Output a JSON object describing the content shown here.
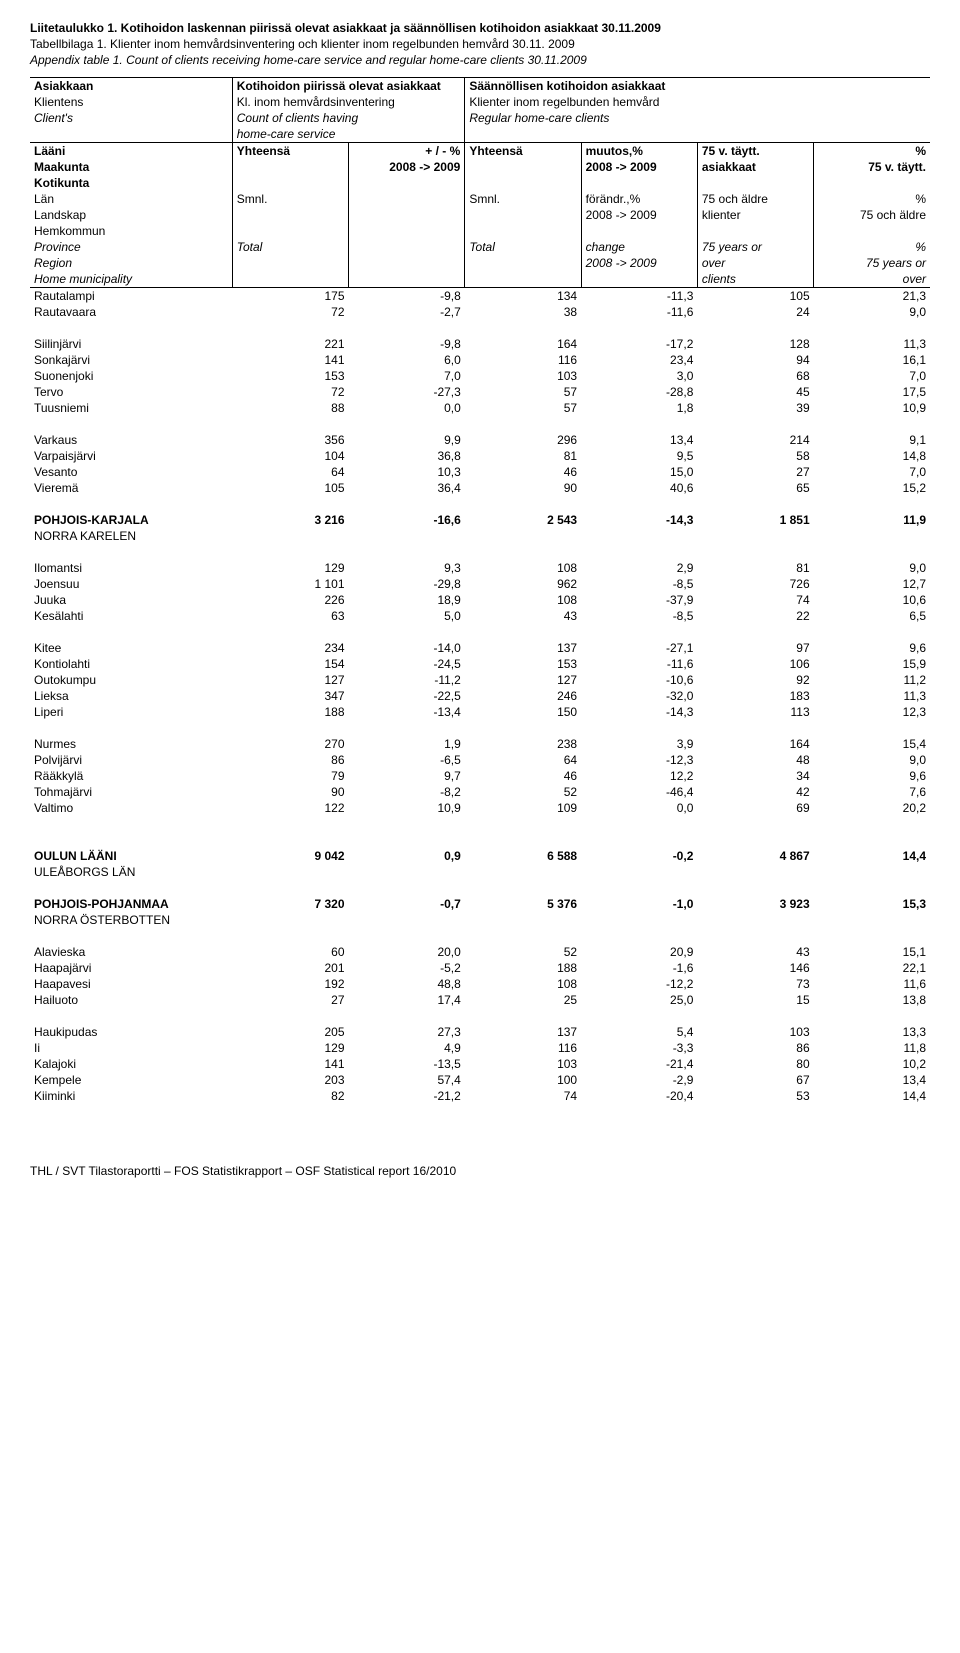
{
  "titles": {
    "fi_a": "Liitetaulukko 1. Kotihoidon laskennan piirissä olevat asiakkaat ja säännöllisen kotihoidon asiakkaat 30.11.2009",
    "sv_a": "Tabellbilaga 1.  Klienter inom hemvårdsinventering och klienter inom regelbunden hemvård 30.11. 2009",
    "en_a": "Appendix table  1. Count of clients receiving home-care service and regular home-care clients 30.11.2009"
  },
  "head": {
    "r1c1a": "Asiakkaan",
    "r1c2a": "Kotihoidon piirissä olevat asiakkaat",
    "r1c3a": "Säännöllisen kotihoidon asiakkaat",
    "r2c1": "Klientens",
    "r2c2": "Kl. inom hemvårdsinventering",
    "r2c3": "Klienter inom regelbunden hemvård",
    "r3c1": "Client's",
    "r3c2": "Count of clients having",
    "r3c3": "Regular home-care clients",
    "r4c2": "home-care service",
    "h2r1c1": "Lääni",
    "h2r1c2": "Yhteensä",
    "h2r1c3": "+ / -  %",
    "h2r1c4": "Yhteensä",
    "h2r1c5": "muutos,%",
    "h2r1c6": "75 v. täytt.",
    "h2r1c7": "%",
    "h2r2c1": "Maakunta",
    "h2r2c3": "2008 -> 2009",
    "h2r2c5": "2008 -> 2009",
    "h2r2c6": "asiakkaat",
    "h2r2c7": "75 v. täytt.",
    "h2r3c1": "Kotikunta",
    "h2r4c1": "Län",
    "h2r4c2": "Smnl.",
    "h2r4c4": "Smnl.",
    "h2r4c5": "förändr.,%",
    "h2r4c6": "75 och äldre",
    "h2r4c7": "%",
    "h2r5c1": "Landskap",
    "h2r5c5": "2008 -> 2009",
    "h2r5c6": "klienter",
    "h2r5c7": "75 och äldre",
    "h2r6c1": "Hemkommun",
    "h2r7c1": "Province",
    "h2r7c2": "Total",
    "h2r7c4": "Total",
    "h2r7c5": "change",
    "h2r7c6": "75 years or",
    "h2r7c7": "%",
    "h2r8c1": "Region",
    "h2r8c5": "2008 -> 2009",
    "h2r8c6": "over",
    "h2r8c7": "75 years or",
    "h2r9c1": "Home municipality",
    "h2r9c6": "clients",
    "h2r9c7": "over"
  },
  "rows": [
    {
      "label": "Rautalampi",
      "v": [
        "175",
        "-9,8",
        "134",
        "-11,3",
        "105",
        "21,3"
      ]
    },
    {
      "label": "Rautavaara",
      "v": [
        "72",
        "-2,7",
        "38",
        "-11,6",
        "24",
        "9,0"
      ]
    },
    {
      "spacer": true
    },
    {
      "label": "Siilinjärvi",
      "v": [
        "221",
        "-9,8",
        "164",
        "-17,2",
        "128",
        "11,3"
      ]
    },
    {
      "label": "Sonkajärvi",
      "v": [
        "141",
        "6,0",
        "116",
        "23,4",
        "94",
        "16,1"
      ]
    },
    {
      "label": "Suonenjoki",
      "v": [
        "153",
        "7,0",
        "103",
        "3,0",
        "68",
        "7,0"
      ]
    },
    {
      "label": "Tervo",
      "v": [
        "72",
        "-27,3",
        "57",
        "-28,8",
        "45",
        "17,5"
      ]
    },
    {
      "label": "Tuusniemi",
      "v": [
        "88",
        "0,0",
        "57",
        "1,8",
        "39",
        "10,9"
      ]
    },
    {
      "spacer": true
    },
    {
      "label": "Varkaus",
      "v": [
        "356",
        "9,9",
        "296",
        "13,4",
        "214",
        "9,1"
      ]
    },
    {
      "label": "Varpaisjärvi",
      "v": [
        "104",
        "36,8",
        "81",
        "9,5",
        "58",
        "14,8"
      ]
    },
    {
      "label": "Vesanto",
      "v": [
        "64",
        "10,3",
        "46",
        "15,0",
        "27",
        "7,0"
      ]
    },
    {
      "label": "Vieremä",
      "v": [
        "105",
        "36,4",
        "90",
        "40,6",
        "65",
        "15,2"
      ]
    },
    {
      "spacer": true
    },
    {
      "label": "POHJOIS-KARJALA",
      "bold": true,
      "v": [
        "3 216",
        "-16,6",
        "2 543",
        "-14,3",
        "1 851",
        "11,9"
      ]
    },
    {
      "label": "NORRA KARELEN",
      "v": [
        "",
        "",
        "",
        "",
        "",
        ""
      ]
    },
    {
      "spacer": true
    },
    {
      "label": "Ilomantsi",
      "v": [
        "129",
        "9,3",
        "108",
        "2,9",
        "81",
        "9,0"
      ]
    },
    {
      "label": "Joensuu",
      "v": [
        "1 101",
        "-29,8",
        "962",
        "-8,5",
        "726",
        "12,7"
      ]
    },
    {
      "label": "Juuka",
      "v": [
        "226",
        "18,9",
        "108",
        "-37,9",
        "74",
        "10,6"
      ]
    },
    {
      "label": "Kesälahti",
      "v": [
        "63",
        "5,0",
        "43",
        "-8,5",
        "22",
        "6,5"
      ]
    },
    {
      "spacer": true
    },
    {
      "label": "Kitee",
      "v": [
        "234",
        "-14,0",
        "137",
        "-27,1",
        "97",
        "9,6"
      ]
    },
    {
      "label": "Kontiolahti",
      "v": [
        "154",
        "-24,5",
        "153",
        "-11,6",
        "106",
        "15,9"
      ]
    },
    {
      "label": "Outokumpu",
      "v": [
        "127",
        "-11,2",
        "127",
        "-10,6",
        "92",
        "11,2"
      ]
    },
    {
      "label": "Lieksa",
      "v": [
        "347",
        "-22,5",
        "246",
        "-32,0",
        "183",
        "11,3"
      ]
    },
    {
      "label": "Liperi",
      "v": [
        "188",
        "-13,4",
        "150",
        "-14,3",
        "113",
        "12,3"
      ]
    },
    {
      "spacer": true
    },
    {
      "label": "Nurmes",
      "v": [
        "270",
        "1,9",
        "238",
        "3,9",
        "164",
        "15,4"
      ]
    },
    {
      "label": "Polvijärvi",
      "v": [
        "86",
        "-6,5",
        "64",
        "-12,3",
        "48",
        "9,0"
      ]
    },
    {
      "label": "Rääkkylä",
      "v": [
        "79",
        "9,7",
        "46",
        "12,2",
        "34",
        "9,6"
      ]
    },
    {
      "label": "Tohmajärvi",
      "v": [
        "90",
        "-8,2",
        "52",
        "-46,4",
        "42",
        "7,6"
      ]
    },
    {
      "label": "Valtimo",
      "v": [
        "122",
        "10,9",
        "109",
        "0,0",
        "69",
        "20,2"
      ]
    },
    {
      "spacer": true
    },
    {
      "spacer": true
    },
    {
      "label": "OULUN LÄÄNI",
      "bold": true,
      "v": [
        "9 042",
        "0,9",
        "6 588",
        "-0,2",
        "4 867",
        "14,4"
      ]
    },
    {
      "label": "ULEÅBORGS LÄN",
      "v": [
        "",
        "",
        "",
        "",
        "",
        ""
      ]
    },
    {
      "spacer": true
    },
    {
      "label": "POHJOIS-POHJANMAA",
      "bold": true,
      "v": [
        "7 320",
        "-0,7",
        "5 376",
        "-1,0",
        "3 923",
        "15,3"
      ]
    },
    {
      "label": "NORRA ÖSTERBOTTEN",
      "v": [
        "",
        "",
        "",
        "",
        "",
        ""
      ]
    },
    {
      "spacer": true
    },
    {
      "label": "Alavieska",
      "v": [
        "60",
        "20,0",
        "52",
        "20,9",
        "43",
        "15,1"
      ]
    },
    {
      "label": "Haapajärvi",
      "v": [
        "201",
        "-5,2",
        "188",
        "-1,6",
        "146",
        "22,1"
      ]
    },
    {
      "label": "Haapavesi",
      "v": [
        "192",
        "48,8",
        "108",
        "-12,2",
        "73",
        "11,6"
      ]
    },
    {
      "label": "Hailuoto",
      "v": [
        "27",
        "17,4",
        "25",
        "25,0",
        "15",
        "13,8"
      ]
    },
    {
      "spacer": true
    },
    {
      "label": "Haukipudas",
      "v": [
        "205",
        "27,3",
        "137",
        "5,4",
        "103",
        "13,3"
      ]
    },
    {
      "label": "Ii",
      "v": [
        "129",
        "4,9",
        "116",
        "-3,3",
        "86",
        "11,8"
      ]
    },
    {
      "label": "Kalajoki",
      "v": [
        "141",
        "-13,5",
        "103",
        "-21,4",
        "80",
        "10,2"
      ]
    },
    {
      "label": "Kempele",
      "v": [
        "203",
        "57,4",
        "100",
        "-2,9",
        "67",
        "13,4"
      ]
    },
    {
      "label": "Kiiminki",
      "v": [
        "82",
        "-21,2",
        "74",
        "-20,4",
        "53",
        "14,4"
      ]
    }
  ],
  "footer": "THL / SVT Tilastoraportti – FOS Statistikrapport – OSF Statistical report 16/2010"
}
